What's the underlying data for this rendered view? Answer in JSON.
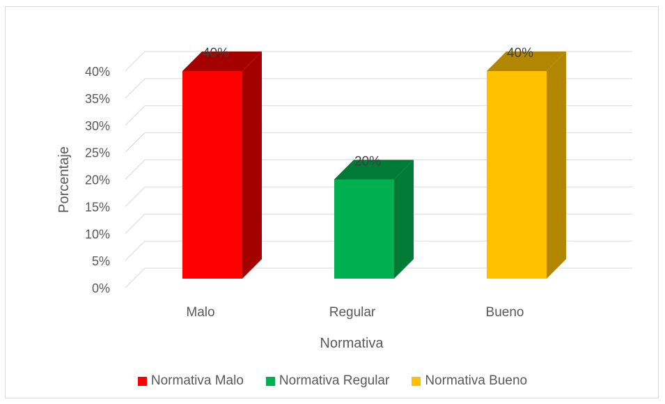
{
  "chart_data": {
    "type": "bar",
    "categories": [
      "Malo",
      "Regular",
      "Bueno"
    ],
    "values": [
      40,
      20,
      40
    ],
    "data_labels": [
      "40%",
      "20%",
      "40%"
    ],
    "colors": [
      "#ff0000",
      "#00b050",
      "#ffc000"
    ],
    "side_colors": [
      "#a50000",
      "#007a37",
      "#b38600"
    ],
    "xlabel": "Normativa",
    "ylabel": "Porcentaje",
    "ylim": [
      0,
      40
    ],
    "yticks": [
      "0%",
      "5%",
      "10%",
      "15%",
      "20%",
      "25%",
      "30%",
      "35%",
      "40%"
    ],
    "grid": true,
    "legend_position": "bottom",
    "legend": [
      "Normativa Malo",
      "Normativa Regular",
      "Normativa Bueno"
    ]
  }
}
